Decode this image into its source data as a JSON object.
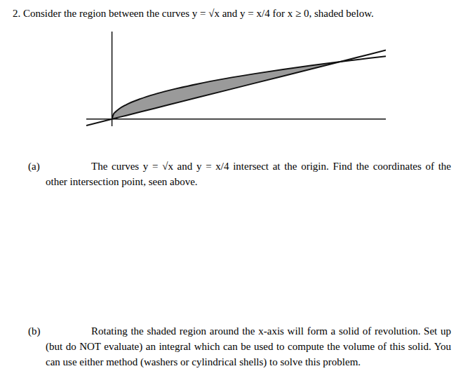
{
  "header": {
    "title": "2. Consider the region between the curves y = √x and y = x/4 for x ≥ 0, shaded below."
  },
  "chart_data": {
    "type": "line",
    "x": [
      -1.8,
      0,
      0.1,
      0.25,
      0.5,
      1,
      2,
      3,
      4,
      6,
      8,
      10,
      12,
      14,
      16,
      18,
      19.2
    ],
    "series": [
      {
        "color": "#111111",
        "values": [
          null,
          0,
          0.32,
          0.5,
          0.71,
          1,
          1.41,
          1.73,
          2,
          2.45,
          2.83,
          3.16,
          3.46,
          3.74,
          4,
          4.24,
          4.38
        ]
      },
      {
        "color": "#111111",
        "values": [
          -0.45,
          0,
          0.03,
          0.06,
          0.13,
          0.25,
          0.5,
          0.75,
          1,
          1.5,
          2,
          2.5,
          3,
          3.5,
          4,
          4.5,
          4.8
        ]
      }
    ],
    "color": "#9a9a9a",
    "xlim": [
      -1.8,
      19.2
    ],
    "ylim": [
      -0.5,
      6.1
    ],
    "xticks": [],
    "yticks": [],
    "tick_labels": false
  },
  "parts": [
    {
      "label": "(a)",
      "text": "The curves y = √x and y = x/4 intersect at the origin. Find the coordinates of the other intersection point, seen above."
    },
    {
      "label": "(b)",
      "text": "Rotating the shaded region around the x-axis will form a solid of revolution. Set up (but do NOT evaluate) an integral which can be used to compute the volume of this solid. You can use either method (washers or cylindrical shells) to solve this problem."
    }
  ]
}
